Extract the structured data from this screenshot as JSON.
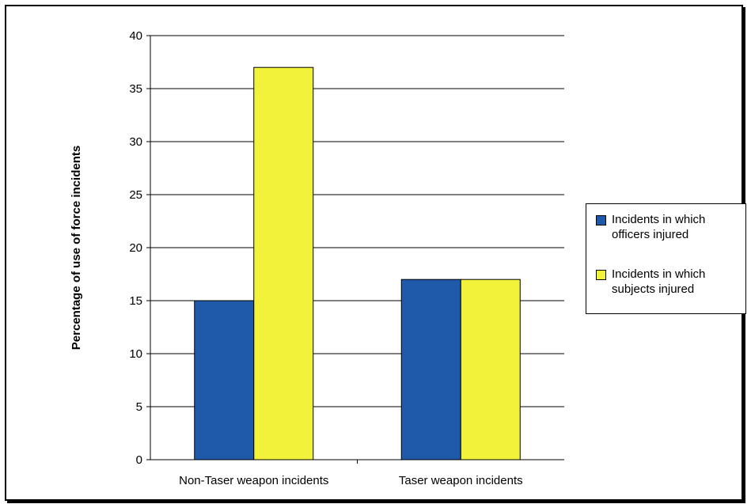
{
  "chart_data": {
    "type": "bar",
    "categories": [
      "Non-Taser weapon incidents",
      "Taser weapon incidents"
    ],
    "series": [
      {
        "name": "Incidents in which officers injured",
        "values": [
          15,
          17
        ],
        "color": "#1F5AAA"
      },
      {
        "name": "Incidents in which subjects injured",
        "values": [
          37,
          17
        ],
        "color": "#F2F23A"
      }
    ],
    "ylabel": "Percentage of use of force incidents",
    "xlabel": "",
    "ylim": [
      0,
      40
    ],
    "yticks": [
      "0",
      "5",
      "10",
      "15",
      "20",
      "25",
      "30",
      "35",
      "40"
    ],
    "grid": true,
    "legend_position": "right"
  }
}
